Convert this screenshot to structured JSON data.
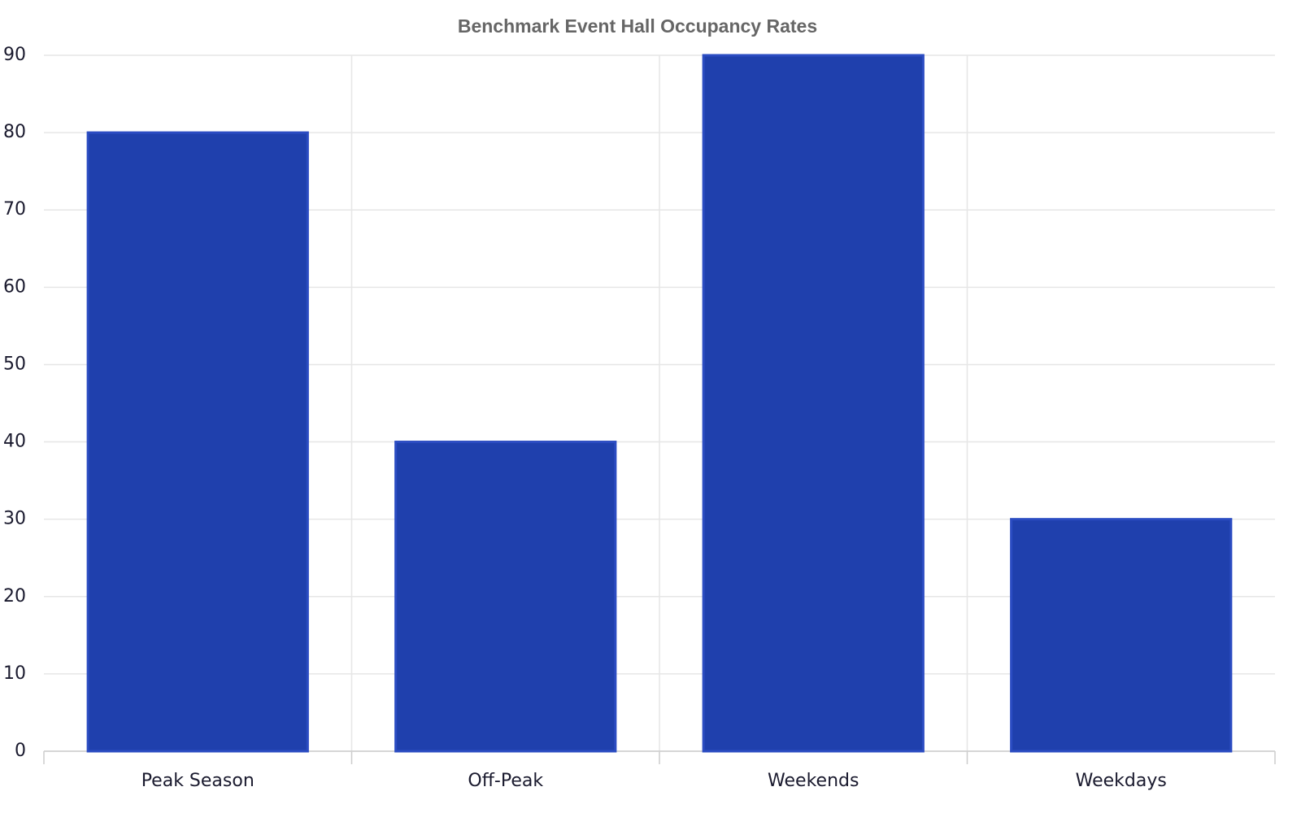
{
  "chart_data": {
    "type": "bar",
    "title": "Benchmark Event Hall Occupancy Rates",
    "categories": [
      "Peak Season",
      "Off-Peak",
      "Weekends",
      "Weekdays"
    ],
    "values": [
      80,
      40,
      90,
      30
    ],
    "color": "#1f40ad",
    "ylim": [
      0,
      90
    ],
    "yticks": [
      0,
      10,
      20,
      30,
      40,
      50,
      60,
      70,
      80,
      90
    ],
    "grid": true
  }
}
